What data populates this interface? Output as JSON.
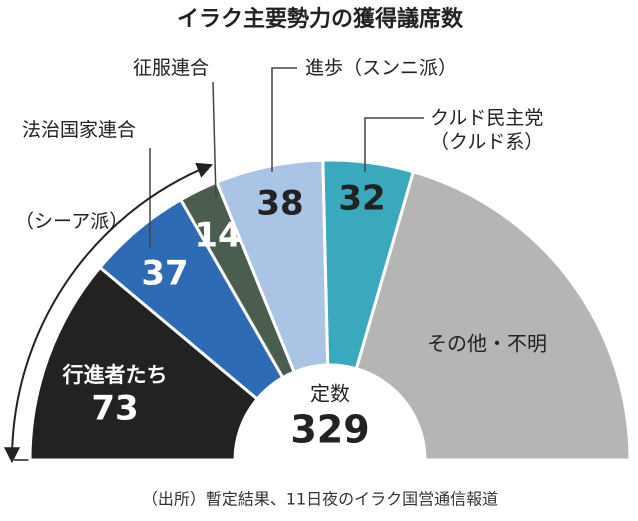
{
  "chart_data": {
    "type": "half-donut",
    "title": "イラク主要勢力の獲得議席数",
    "categories": [
      "行進者たち",
      "法治国家連合",
      "征服連合",
      "進歩（スンニ派）",
      "クルド民主党（クルド系）",
      "その他・不明"
    ],
    "values": [
      73,
      37,
      14,
      38,
      32,
      135
    ],
    "colors": [
      "#222222",
      "#2e6bb5",
      "#4b5d4f",
      "#a9c4e4",
      "#3aa9bd",
      "#b5b5b5"
    ],
    "total_label": "定数",
    "total": 329,
    "group_label": "（シーア派）",
    "source": "（出所）暫定結果、11日夜のイラク国営通信報道"
  }
}
